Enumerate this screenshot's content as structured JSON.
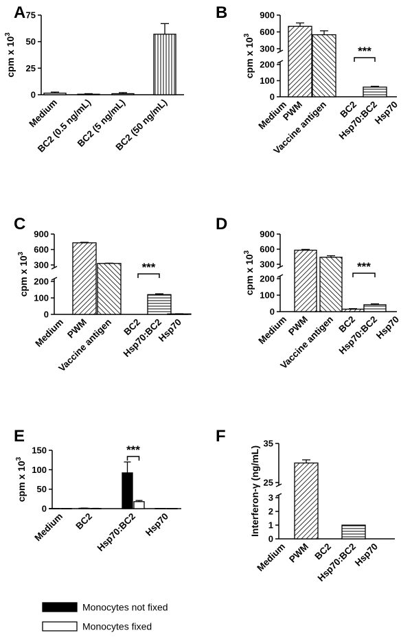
{
  "chart_data": [
    {
      "panel": "A",
      "type": "bar",
      "ylabel_main": "cpm x 10",
      "ylabel_exp": "3",
      "categories": [
        "Medium",
        "BC2 (0.5 ng/mL)",
        "BC2 (5 ng/mL)",
        "BC2 (50 ng/mL)"
      ],
      "values": [
        1.5,
        0.5,
        1,
        57
      ],
      "errors": [
        1,
        0.5,
        1,
        10
      ],
      "patterns": [
        "none",
        "none",
        "none",
        "vlines"
      ],
      "yticks": [
        0,
        25,
        50,
        75
      ],
      "ylim": [
        0,
        75
      ]
    },
    {
      "panel": "B",
      "type": "bar",
      "ylabel_main": "cpm x 10",
      "ylabel_exp": "3",
      "categories": [
        "Medium",
        "PWM",
        "Vaccine antigen",
        "BC2",
        "Hsp70:BC2",
        "Hsp70"
      ],
      "values": [
        0,
        700,
        550,
        0,
        60,
        0
      ],
      "errors": [
        0,
        60,
        70,
        0,
        5,
        0
      ],
      "patterns": [
        "none",
        "diag45",
        "diag135",
        "none",
        "hlines",
        "none"
      ],
      "yticks_lower": [
        0,
        100,
        200
      ],
      "yticks_upper": [
        300,
        600,
        900
      ],
      "significance": {
        "label": "***",
        "from": 3,
        "to": 4
      }
    },
    {
      "panel": "C",
      "type": "bar",
      "ylabel_main": "cpm x 10",
      "ylabel_exp": "3",
      "categories": [
        "Medium",
        "PWM",
        "Vaccine antigen",
        "BC2",
        "Hsp70:BC2",
        "Hsp70"
      ],
      "values": [
        0,
        730,
        330,
        0,
        120,
        3
      ],
      "errors": [
        0,
        10,
        5,
        0,
        5,
        1
      ],
      "patterns": [
        "none",
        "diag45",
        "diag135",
        "none",
        "hlines",
        "none"
      ],
      "yticks_lower": [
        0,
        100,
        200
      ],
      "yticks_upper": [
        300,
        600,
        900
      ],
      "significance": {
        "label": "***",
        "from": 3,
        "to": 4
      }
    },
    {
      "panel": "D",
      "type": "bar",
      "ylabel_main": "cpm x 10",
      "ylabel_exp": "3",
      "categories": [
        "Medium",
        "PWM",
        "Vaccine antigen",
        "BC2",
        "Hsp70:BC2",
        "Hsp70"
      ],
      "values": [
        0,
        580,
        440,
        15,
        42,
        0
      ],
      "errors": [
        0,
        15,
        30,
        3,
        5,
        0
      ],
      "patterns": [
        "none",
        "diag45",
        "diag135",
        "diag45",
        "hlines",
        "none"
      ],
      "yticks_lower": [
        0,
        100,
        200
      ],
      "yticks_upper": [
        300,
        600,
        900
      ],
      "significance": {
        "label": "***",
        "from": 3,
        "to": 4
      }
    },
    {
      "panel": "E",
      "type": "bar",
      "ylabel_main": "cpm x 10",
      "ylabel_exp": "3",
      "categories": [
        "Medium",
        "BC2",
        "Hsp70:BC2",
        "Hsp70"
      ],
      "series": [
        {
          "name": "Monocytes not fixed",
          "values": [
            0.5,
            1,
            92,
            0.5
          ],
          "errors": [
            0,
            0.5,
            28,
            0
          ],
          "fill": "#000000"
        },
        {
          "name": "Monocytes fixed",
          "values": [
            0.3,
            0.5,
            18,
            0.3
          ],
          "errors": [
            0,
            0.3,
            3,
            0
          ],
          "fill": "#ffffff"
        }
      ],
      "yticks": [
        0,
        50,
        100,
        150
      ],
      "ylim": [
        0,
        150
      ],
      "significance": {
        "label": "***"
      }
    },
    {
      "panel": "F",
      "type": "bar",
      "ylabel": "Interferon-γ (ng/mL)",
      "categories": [
        "Medium",
        "PWM",
        "BC2",
        "Hsp70:BC2",
        "Hsp70"
      ],
      "values": [
        0,
        30,
        0,
        1,
        0
      ],
      "errors": [
        0,
        0.8,
        0,
        0,
        0
      ],
      "patterns": [
        "none",
        "diag45",
        "none",
        "hlines",
        "none"
      ],
      "yticks_lower": [
        0,
        1,
        2,
        3
      ],
      "yticks_upper": [
        25,
        35
      ]
    }
  ]
}
